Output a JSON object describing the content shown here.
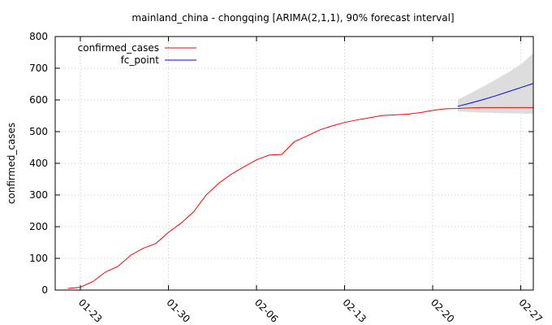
{
  "chart_data": {
    "type": "line",
    "title": "mainland_china - chongqing [ARIMA(2,1,1), 90% forecast interval]",
    "xlabel": "",
    "ylabel": "confirmed_cases",
    "ylim": [
      0,
      800
    ],
    "yticks": [
      "0",
      "100",
      "200",
      "300",
      "400",
      "500",
      "600",
      "700",
      "800"
    ],
    "xlim": [
      "2020-01-21",
      "2020-02-28"
    ],
    "xticks": [
      {
        "date": "2020-01-23",
        "label": "01-23"
      },
      {
        "date": "2020-01-30",
        "label": "01-30"
      },
      {
        "date": "2020-02-06",
        "label": "02-06"
      },
      {
        "date": "2020-02-13",
        "label": "02-13"
      },
      {
        "date": "2020-02-20",
        "label": "02-20"
      },
      {
        "date": "2020-02-27",
        "label": "02-27"
      }
    ],
    "grid": true,
    "legend_position": "top-left",
    "series": [
      {
        "name": "confirmed_cases",
        "color": "#ff0000",
        "points": [
          [
            "2020-01-22",
            5
          ],
          [
            "2020-01-23",
            9
          ],
          [
            "2020-01-24",
            27
          ],
          [
            "2020-01-25",
            57
          ],
          [
            "2020-01-26",
            75
          ],
          [
            "2020-01-27",
            110
          ],
          [
            "2020-01-28",
            132
          ],
          [
            "2020-01-29",
            147
          ],
          [
            "2020-01-30",
            182
          ],
          [
            "2020-01-31",
            211
          ],
          [
            "2020-02-01",
            247
          ],
          [
            "2020-02-02",
            300
          ],
          [
            "2020-02-03",
            337
          ],
          [
            "2020-02-04",
            366
          ],
          [
            "2020-02-05",
            389
          ],
          [
            "2020-02-06",
            411
          ],
          [
            "2020-02-07",
            426
          ],
          [
            "2020-02-08",
            428
          ],
          [
            "2020-02-09",
            468
          ],
          [
            "2020-02-10",
            486
          ],
          [
            "2020-02-11",
            505
          ],
          [
            "2020-02-12",
            518
          ],
          [
            "2020-02-13",
            529
          ],
          [
            "2020-02-14",
            537
          ],
          [
            "2020-02-15",
            544
          ],
          [
            "2020-02-16",
            551
          ],
          [
            "2020-02-17",
            553
          ],
          [
            "2020-02-18",
            555
          ],
          [
            "2020-02-19",
            560
          ],
          [
            "2020-02-20",
            567
          ],
          [
            "2020-02-21",
            572
          ],
          [
            "2020-02-22",
            573
          ],
          [
            "2020-02-23",
            575
          ],
          [
            "2020-02-24",
            576
          ],
          [
            "2020-02-25",
            576
          ],
          [
            "2020-02-26",
            576
          ],
          [
            "2020-02-27",
            576
          ],
          [
            "2020-02-28",
            576
          ]
        ]
      },
      {
        "name": "fc_point",
        "color": "#0000ff",
        "points": [
          [
            "2020-02-22",
            580
          ],
          [
            "2020-02-23",
            590
          ],
          [
            "2020-02-24",
            601
          ],
          [
            "2020-02-25",
            613
          ],
          [
            "2020-02-26",
            626
          ],
          [
            "2020-02-27",
            639
          ],
          [
            "2020-02-28",
            652
          ]
        ]
      }
    ],
    "interval": {
      "fill": "#dddddd",
      "points": [
        [
          "2020-02-22",
          564,
          601
        ],
        [
          "2020-02-23",
          562,
          621
        ],
        [
          "2020-02-24",
          560,
          642
        ],
        [
          "2020-02-25",
          559,
          664
        ],
        [
          "2020-02-26",
          558,
          687
        ],
        [
          "2020-02-27",
          557,
          712
        ],
        [
          "2020-02-28",
          556,
          748
        ]
      ]
    }
  }
}
